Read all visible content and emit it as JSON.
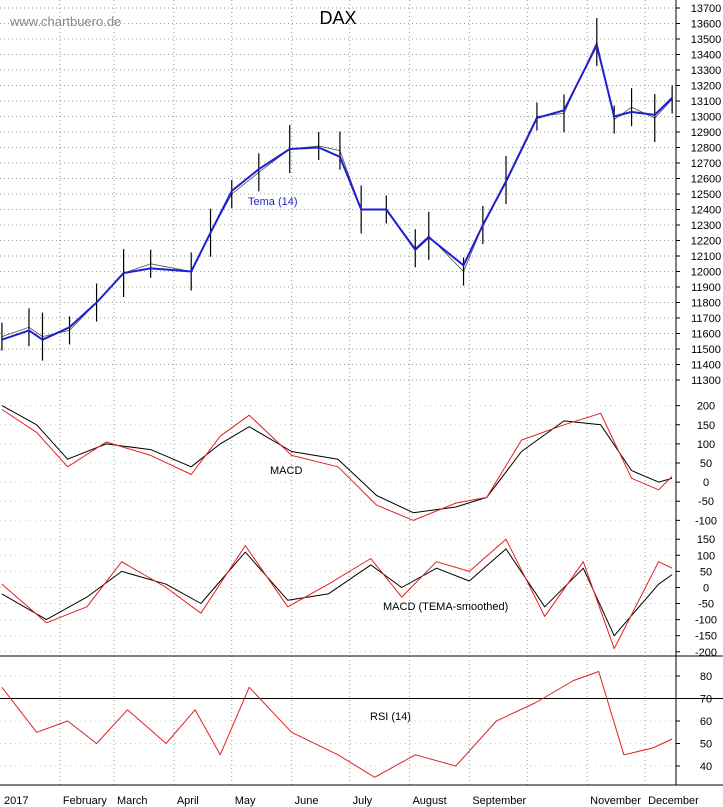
{
  "watermark": "www.chartbuero.de",
  "title": "DAX",
  "colors": {
    "price": "#000000",
    "tema": "#1f1fd0",
    "macd": "#000000",
    "signal": "#e02020",
    "rsi": "#e02020",
    "grid": "#9a9a9a",
    "axis": "#000000"
  },
  "chart_data": [
    {
      "type": "line",
      "panel": "price",
      "title": "DAX",
      "ylim": [
        11300,
        13700
      ],
      "yticks": [
        11300,
        11400,
        11500,
        11600,
        11700,
        11800,
        11900,
        12000,
        12100,
        12200,
        12300,
        12400,
        12500,
        12600,
        12700,
        12800,
        12900,
        13000,
        13100,
        13200,
        13300,
        13400,
        13500,
        13600,
        13700
      ],
      "grid": true,
      "series": [
        {
          "name": "",
          "style": "daily-bars",
          "x": [
            "2017-01-02",
            "2017-01-16",
            "2017-01-23",
            "2017-02-06",
            "2017-02-20",
            "2017-03-06",
            "2017-03-20",
            "2017-04-10",
            "2017-04-20",
            "2017-05-01",
            "2017-05-15",
            "2017-05-31",
            "2017-06-15",
            "2017-06-26",
            "2017-07-07",
            "2017-07-20",
            "2017-08-04",
            "2017-08-11",
            "2017-08-29",
            "2017-09-08",
            "2017-09-20",
            "2017-10-06",
            "2017-10-20",
            "2017-11-06",
            "2017-11-15",
            "2017-11-24",
            "2017-12-06",
            "2017-12-15"
          ],
          "y": [
            11580,
            11640,
            11580,
            11620,
            11800,
            11990,
            12050,
            12000,
            12250,
            12500,
            12640,
            12790,
            12810,
            12780,
            12400,
            12400,
            12150,
            12230,
            12000,
            12300,
            12590,
            13000,
            13020,
            13480,
            12980,
            13060,
            12990,
            13110
          ]
        },
        {
          "name": "Tema (14)",
          "x": [
            "2017-01-02",
            "2017-01-16",
            "2017-01-23",
            "2017-02-06",
            "2017-02-20",
            "2017-03-06",
            "2017-03-20",
            "2017-04-10",
            "2017-04-20",
            "2017-05-01",
            "2017-05-15",
            "2017-05-31",
            "2017-06-15",
            "2017-06-26",
            "2017-07-07",
            "2017-07-20",
            "2017-08-04",
            "2017-08-11",
            "2017-08-29",
            "2017-09-08",
            "2017-09-20",
            "2017-10-06",
            "2017-10-20",
            "2017-11-06",
            "2017-11-15",
            "2017-11-24",
            "2017-12-06",
            "2017-12-15"
          ],
          "y": [
            11560,
            11620,
            11560,
            11640,
            11800,
            11990,
            12020,
            12000,
            12250,
            12520,
            12660,
            12790,
            12800,
            12740,
            12400,
            12400,
            12140,
            12220,
            12040,
            12300,
            12580,
            12990,
            13040,
            13460,
            13000,
            13030,
            13010,
            13120
          ]
        }
      ]
    },
    {
      "type": "line",
      "panel": "macd",
      "label": "MACD",
      "ylim": [
        -120,
        220
      ],
      "yticks": [
        200,
        150,
        100,
        50,
        0,
        -50,
        -100
      ],
      "series": [
        {
          "name": "",
          "color": "black",
          "x": [
            "2017-01-02",
            "2017-01-20",
            "2017-02-05",
            "2017-02-25",
            "2017-03-20",
            "2017-04-10",
            "2017-04-25",
            "2017-05-10",
            "2017-06-01",
            "2017-06-25",
            "2017-07-15",
            "2017-08-03",
            "2017-08-25",
            "2017-09-10",
            "2017-09-28",
            "2017-10-20",
            "2017-11-08",
            "2017-11-24",
            "2017-12-08",
            "2017-12-15"
          ],
          "y": [
            200,
            150,
            60,
            100,
            85,
            40,
            100,
            145,
            80,
            60,
            -35,
            -80,
            -65,
            -40,
            80,
            160,
            150,
            30,
            0,
            10
          ]
        },
        {
          "name": "",
          "color": "red",
          "x": [
            "2017-01-02",
            "2017-01-20",
            "2017-02-05",
            "2017-02-25",
            "2017-03-20",
            "2017-04-10",
            "2017-04-25",
            "2017-05-10",
            "2017-06-01",
            "2017-06-25",
            "2017-07-15",
            "2017-08-03",
            "2017-08-25",
            "2017-09-10",
            "2017-09-28",
            "2017-10-20",
            "2017-11-08",
            "2017-11-24",
            "2017-12-08",
            "2017-12-15"
          ],
          "y": [
            190,
            130,
            40,
            105,
            70,
            20,
            120,
            175,
            70,
            40,
            -60,
            -100,
            -55,
            -40,
            110,
            150,
            180,
            10,
            -20,
            15
          ]
        }
      ]
    },
    {
      "type": "line",
      "panel": "macd-smoothed",
      "label": "MACD (TEMA-smoothed)",
      "ylim": [
        -210,
        160
      ],
      "yticks": [
        150,
        100,
        50,
        0,
        -50,
        -100,
        -150,
        -200
      ],
      "series": [
        {
          "name": "",
          "color": "black",
          "x": [
            "2017-01-02",
            "2017-01-25",
            "2017-02-15",
            "2017-03-05",
            "2017-03-28",
            "2017-04-15",
            "2017-05-08",
            "2017-05-30",
            "2017-06-20",
            "2017-07-12",
            "2017-07-28",
            "2017-08-15",
            "2017-09-01",
            "2017-09-20",
            "2017-10-10",
            "2017-10-30",
            "2017-11-15",
            "2017-12-08",
            "2017-12-15"
          ],
          "y": [
            -20,
            -100,
            -30,
            50,
            10,
            -50,
            110,
            -40,
            -20,
            70,
            0,
            60,
            20,
            120,
            -60,
            60,
            -150,
            10,
            40
          ]
        },
        {
          "name": "",
          "color": "red",
          "x": [
            "2017-01-02",
            "2017-01-25",
            "2017-02-15",
            "2017-03-05",
            "2017-03-28",
            "2017-04-15",
            "2017-05-08",
            "2017-05-30",
            "2017-06-20",
            "2017-07-12",
            "2017-07-28",
            "2017-08-15",
            "2017-09-01",
            "2017-09-20",
            "2017-10-10",
            "2017-10-30",
            "2017-11-15",
            "2017-12-08",
            "2017-12-15"
          ],
          "y": [
            10,
            -110,
            -60,
            80,
            0,
            -80,
            130,
            -60,
            10,
            90,
            -30,
            80,
            50,
            150,
            -90,
            80,
            -190,
            80,
            60
          ]
        }
      ]
    },
    {
      "type": "line",
      "panel": "rsi",
      "label": "RSI (14)",
      "ylim": [
        32,
        88
      ],
      "yticks": [
        80,
        70,
        60,
        50,
        40
      ],
      "hlines": [
        70
      ],
      "series": [
        {
          "name": "",
          "color": "red",
          "x": [
            "2017-01-02",
            "2017-01-20",
            "2017-02-05",
            "2017-02-20",
            "2017-03-08",
            "2017-03-28",
            "2017-04-12",
            "2017-04-25",
            "2017-05-10",
            "2017-06-01",
            "2017-06-25",
            "2017-07-14",
            "2017-08-04",
            "2017-08-25",
            "2017-09-15",
            "2017-10-05",
            "2017-10-25",
            "2017-11-07",
            "2017-11-20",
            "2017-12-05",
            "2017-12-15"
          ],
          "y": [
            75,
            55,
            60,
            50,
            65,
            50,
            65,
            45,
            75,
            55,
            45,
            35,
            45,
            40,
            60,
            68,
            78,
            82,
            45,
            48,
            52
          ]
        }
      ]
    }
  ],
  "xaxis": {
    "year": "2017",
    "months": [
      "February",
      "March",
      "April",
      "May",
      "June",
      "July",
      "August",
      "September",
      "November",
      "December"
    ]
  }
}
